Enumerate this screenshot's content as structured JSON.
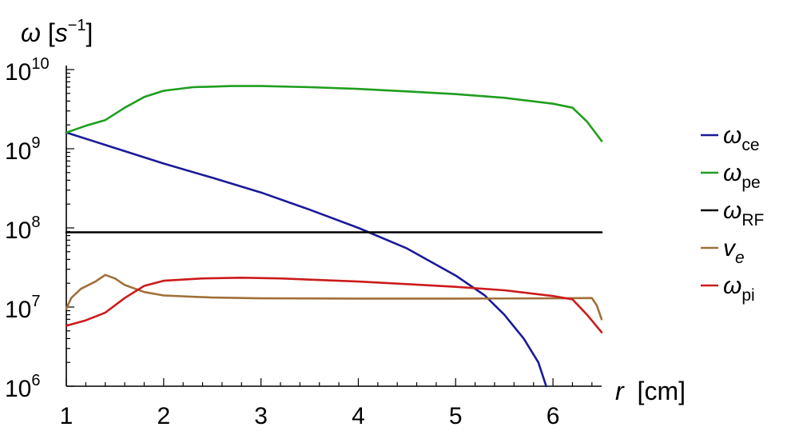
{
  "chart_data": {
    "type": "line",
    "ylabel": {
      "symbol": "ω",
      "unit_open": "[",
      "unit_base": "s",
      "unit_exp": "−1",
      "unit_close": "]"
    },
    "xlabel": {
      "symbol": "r",
      "unit": "[cm]"
    },
    "xlim": [
      1,
      6.5
    ],
    "ylim": [
      1000000,
      10000000000
    ],
    "yscale": "log",
    "x_ticks": [
      "1",
      "2",
      "3",
      "4",
      "5",
      "6"
    ],
    "y_ticks": [
      {
        "base": "10",
        "exp": "6"
      },
      {
        "base": "10",
        "exp": "7"
      },
      {
        "base": "10",
        "exp": "8"
      },
      {
        "base": "10",
        "exp": "9"
      },
      {
        "base": "10",
        "exp": "10"
      }
    ],
    "grid": false,
    "legend_position": "right",
    "series": [
      {
        "name": "ω",
        "sub": "ce",
        "sub_italic": false,
        "color": "#1a1a99",
        "x": [
          1.0,
          1.5,
          2.0,
          2.5,
          3.0,
          3.5,
          4.0,
          4.5,
          5.0,
          5.3,
          5.5,
          5.7,
          5.85,
          5.93
        ],
        "y": [
          1600000000,
          1020000000,
          650000000,
          430000000,
          280000000,
          170000000,
          100000000,
          55000000,
          25000000,
          14000000,
          8000000,
          4000000,
          2000000,
          1000000
        ]
      },
      {
        "name": "ω",
        "sub": "pe",
        "sub_italic": false,
        "color": "#1e9e1e",
        "x": [
          1.0,
          1.2,
          1.4,
          1.6,
          1.8,
          2.0,
          2.3,
          2.7,
          3.0,
          3.5,
          4.0,
          4.5,
          5.0,
          5.5,
          6.0,
          6.2,
          6.35,
          6.5
        ],
        "y": [
          1600000000,
          1950000000,
          2300000000,
          3300000000,
          4500000000,
          5400000000,
          6000000000,
          6200000000,
          6200000000,
          6000000000,
          5700000000,
          5300000000,
          4900000000,
          4400000000,
          3700000000,
          3300000000,
          2200000000,
          1250000000
        ]
      },
      {
        "name": "ω",
        "sub": "RF",
        "sub_italic": false,
        "color": "#000000",
        "x": [
          1.0,
          6.5
        ],
        "y": [
          88000000,
          88000000
        ]
      },
      {
        "name": "v",
        "sub": "e",
        "sub_italic": true,
        "color": "#a0703a",
        "x": [
          1.0,
          1.05,
          1.15,
          1.3,
          1.4,
          1.5,
          1.6,
          1.8,
          2.0,
          2.5,
          3.0,
          4.0,
          5.0,
          6.0,
          6.4,
          6.45,
          6.5
        ],
        "y": [
          9500000,
          13000000,
          17000000,
          21000000,
          25500000,
          23000000,
          19000000,
          15500000,
          14000000,
          13200000,
          12900000,
          12800000,
          12800000,
          12900000,
          13000000,
          10500000,
          7000000
        ]
      },
      {
        "name": "ω",
        "sub": "pi",
        "sub_italic": false,
        "color": "#cc1b1b",
        "x": [
          1.0,
          1.2,
          1.4,
          1.6,
          1.8,
          2.0,
          2.4,
          2.8,
          3.2,
          4.0,
          4.5,
          5.0,
          5.5,
          6.0,
          6.2,
          6.35,
          6.5
        ],
        "y": [
          5800000,
          6800000,
          8500000,
          13000000,
          18500000,
          21500000,
          23000000,
          23500000,
          23000000,
          21000000,
          19500000,
          18000000,
          16300000,
          13800000,
          12500000,
          8000000,
          4800000
        ]
      }
    ]
  }
}
